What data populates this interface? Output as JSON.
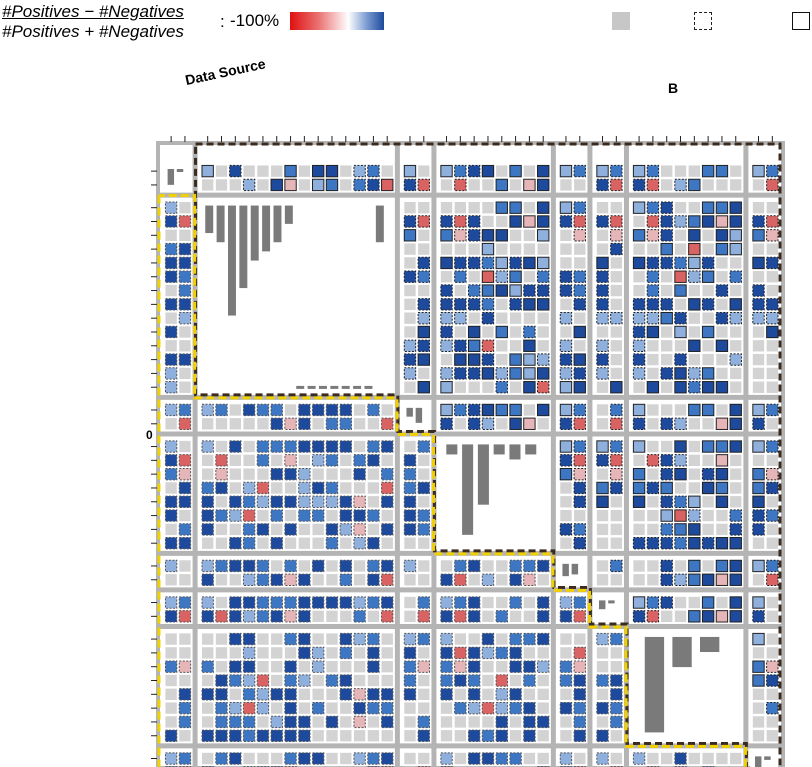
{
  "legend": {
    "numerator": "#Positives − #Negatives",
    "denominator": "#Positives + #Negatives",
    "colon": ":",
    "min_label": "-100%",
    "gradient_colors": [
      "#e01010",
      "#ea7070",
      "#ffffff",
      "#7a9ad0",
      "#1d4a9c"
    ],
    "gray_square_color": "#c7c7c7"
  },
  "labels": {
    "column_header": "Data Source",
    "column_letter": "B",
    "row_zero": "0"
  },
  "colors": {
    "cell_gray": "#d3d3d3",
    "divider": "#b4b4b4",
    "bar": "#7a7a7a",
    "dark_dashed_outline": "#3b2a1e",
    "yellow_dashed_outline": "#f0d000",
    "blue_dark": "#1d4a9c",
    "blue_mid": "#3d77c4",
    "blue_light": "#8fb0dd",
    "red_dark": "#d92222",
    "red_mid": "#d96262",
    "red_light": "#e6b5b8"
  },
  "chart_data": {
    "type": "heatmap",
    "groups": [
      {
        "size": 1,
        "bars": [
          0.9,
          0.1
        ]
      },
      {
        "size": 7,
        "bars": [
          0.15,
          0.2,
          0.6,
          0.45,
          0.3,
          0.25,
          0.2,
          0.1,
          0.05,
          0.0,
          0.0,
          0.0,
          0.0,
          0.0,
          0.0,
          0.2
        ]
      },
      {
        "size": 1,
        "bars": [
          0.5,
          0.85
        ]
      },
      {
        "size": 4,
        "bars": [
          0.1,
          0.9,
          0.6,
          0.1,
          0.15,
          0.1
        ]
      },
      {
        "size": 1,
        "bars": [
          0.7,
          0.6
        ]
      },
      {
        "size": 1,
        "bars": [
          0.5,
          0.1
        ]
      },
      {
        "size": 4,
        "bars": [
          0.95,
          0.3,
          0.15
        ]
      },
      {
        "size": 1,
        "bars": [
          0.9,
          0.2
        ]
      }
    ],
    "dark_outline_region": "upper-triangle",
    "yellow_outline_region": "lower-triangle"
  }
}
